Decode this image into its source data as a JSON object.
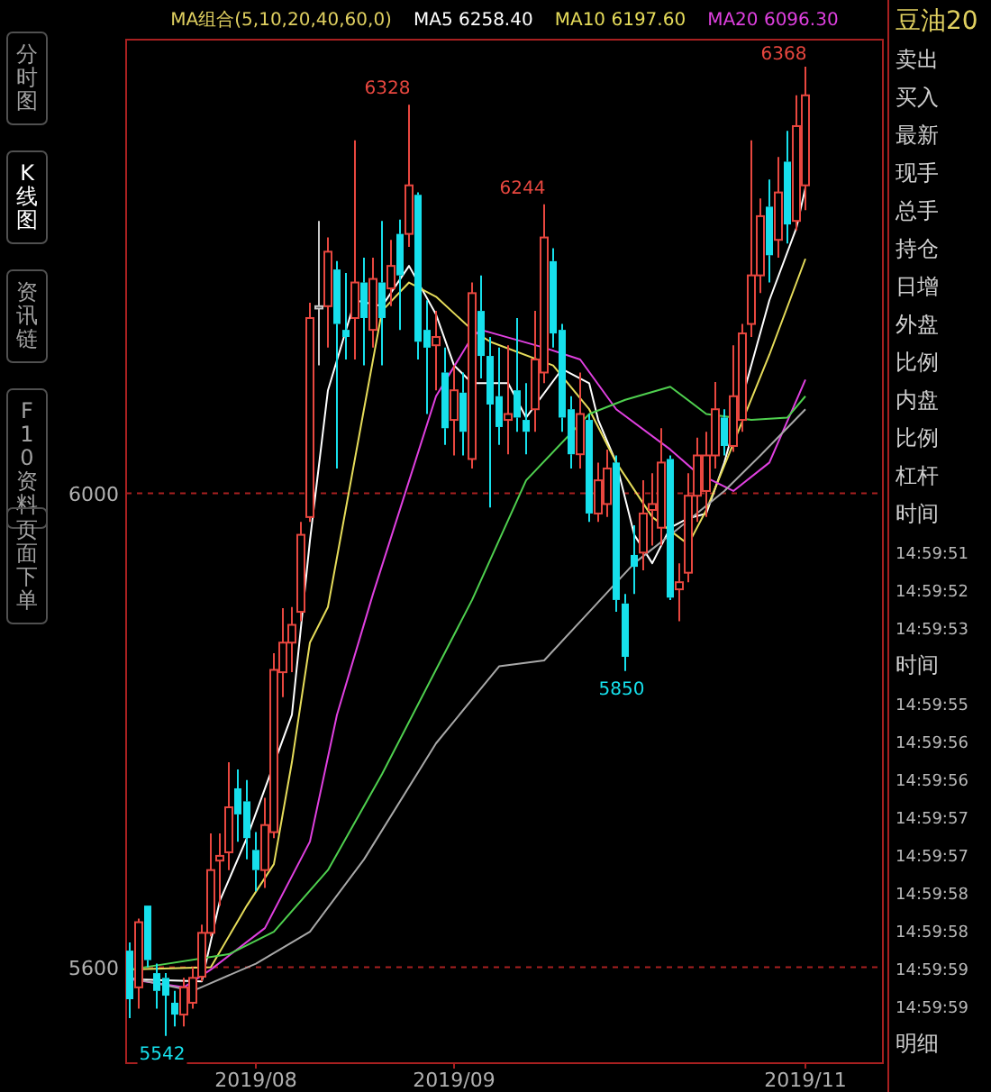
{
  "chart_data": {
    "type": "candlestick",
    "categories": [
      null,
      null,
      null,
      null,
      null,
      null,
      null,
      null,
      null,
      null,
      null,
      null,
      null,
      null,
      "2019/08",
      null,
      null,
      null,
      null,
      null,
      null,
      null,
      null,
      null,
      null,
      null,
      null,
      null,
      null,
      null,
      null,
      null,
      null,
      null,
      null,
      null,
      "2019/09",
      null,
      null,
      null,
      null,
      null,
      null,
      null,
      null,
      null,
      null,
      null,
      null,
      null,
      null,
      null,
      null,
      null,
      null,
      null,
      null,
      null,
      null,
      null,
      null,
      null,
      null,
      null,
      null,
      null,
      null,
      null,
      null,
      null,
      null,
      null,
      null,
      null,
      null,
      "2019/11"
    ],
    "ohlc": [
      [
        5614,
        5621,
        5557,
        5573
      ],
      [
        5583,
        5641,
        5565,
        5638
      ],
      [
        5652,
        5652,
        5600,
        5606
      ],
      [
        5595,
        5603,
        5565,
        5580
      ],
      [
        5591,
        5595,
        5542,
        5576
      ],
      [
        5570,
        5580,
        5550,
        5560
      ],
      [
        5560,
        5591,
        5550,
        5583
      ],
      [
        5570,
        5600,
        5565,
        5591
      ],
      [
        5592,
        5636,
        5588,
        5629
      ],
      [
        5629,
        5713,
        5626,
        5682
      ],
      [
        5690,
        5713,
        5652,
        5694
      ],
      [
        5697,
        5773,
        5682,
        5735
      ],
      [
        5751,
        5767,
        5706,
        5729
      ],
      [
        5740,
        5758,
        5691,
        5709
      ],
      [
        5699,
        5714,
        5664,
        5682
      ],
      [
        5682,
        5743,
        5667,
        5720
      ],
      [
        5714,
        5865,
        5709,
        5851
      ],
      [
        5849,
        5903,
        5828,
        5874
      ],
      [
        5874,
        5904,
        5849,
        5889
      ],
      [
        5900,
        5976,
        5892,
        5965
      ],
      [
        5980,
        6161,
        5976,
        6148
      ],
      [
        6156,
        6230,
        6108,
        6158
      ],
      [
        6158,
        6216,
        6123,
        6204
      ],
      [
        6189,
        6196,
        6021,
        6143
      ],
      [
        6138,
        6186,
        6113,
        6132
      ],
      [
        6148,
        6298,
        6113,
        6178
      ],
      [
        6178,
        6199,
        6108,
        6148
      ],
      [
        6138,
        6199,
        6123,
        6181
      ],
      [
        6178,
        6230,
        6108,
        6148
      ],
      [
        6173,
        6214,
        6158,
        6192
      ],
      [
        6219,
        6231,
        6138,
        6184
      ],
      [
        6219,
        6328,
        6208,
        6260
      ],
      [
        6252,
        6254,
        6113,
        6128
      ],
      [
        6138,
        6163,
        6067,
        6123
      ],
      [
        6125,
        6154,
        6087,
        6132
      ],
      [
        6102,
        6123,
        6041,
        6055
      ],
      [
        6062,
        6108,
        6032,
        6087
      ],
      [
        6085,
        6102,
        6032,
        6052
      ],
      [
        6029,
        6178,
        6021,
        6169
      ],
      [
        6154,
        6184,
        6097,
        6116
      ],
      [
        6116,
        6132,
        5988,
        6075
      ],
      [
        6082,
        6123,
        6041,
        6056
      ],
      [
        6062,
        6125,
        6033,
        6067
      ],
      [
        6087,
        6148,
        6052,
        6064
      ],
      [
        6062,
        6093,
        6033,
        6052
      ],
      [
        6071,
        6154,
        6052,
        6113
      ],
      [
        6102,
        6244,
        6093,
        6216
      ],
      [
        6196,
        6207,
        6123,
        6135
      ],
      [
        6138,
        6143,
        6052,
        6064
      ],
      [
        6071,
        6082,
        6021,
        6033
      ],
      [
        6033,
        6102,
        6021,
        6067
      ],
      [
        6062,
        6067,
        5976,
        5983
      ],
      [
        5983,
        6026,
        5976,
        6011
      ],
      [
        5991,
        6037,
        5980,
        6021
      ],
      [
        6026,
        6032,
        5900,
        5910
      ],
      [
        5907,
        5915,
        5850,
        5862
      ],
      [
        5948,
        5973,
        5915,
        5938
      ],
      [
        5950,
        6011,
        5935,
        5983
      ],
      [
        5986,
        6017,
        5956,
        5991
      ],
      [
        5971,
        6055,
        5956,
        6026
      ],
      [
        6029,
        6032,
        5910,
        5912
      ],
      [
        5919,
        5941,
        5892,
        5925
      ],
      [
        5933,
        6017,
        5925,
        5998
      ],
      [
        5998,
        6047,
        5976,
        6032
      ],
      [
        6002,
        6052,
        5980,
        6032
      ],
      [
        6032,
        6094,
        6021,
        6071
      ],
      [
        6064,
        6071,
        6032,
        6040
      ],
      [
        6040,
        6125,
        6035,
        6082
      ],
      [
        6062,
        6143,
        6052,
        6135
      ],
      [
        6143,
        6298,
        6132,
        6184
      ],
      [
        6184,
        6249,
        6169,
        6234
      ],
      [
        6242,
        6265,
        6178,
        6201
      ],
      [
        6214,
        6284,
        6199,
        6254
      ],
      [
        6280,
        6306,
        6211,
        6227
      ],
      [
        6230,
        6336,
        6222,
        6310
      ],
      [
        6260,
        6368,
        6239,
        6336
      ]
    ],
    "colors": [
      "#16e0ec",
      "#e8473f",
      "#16e0ec",
      "#16e0ec",
      "#16e0ec",
      "#16e0ec",
      "#e8473f",
      "#e8473f",
      "#e8473f",
      "#e8473f",
      "#e8473f",
      "#e8473f",
      "#16e0ec",
      "#16e0ec",
      "#16e0ec",
      "#e8473f",
      "#e8473f",
      "#e8473f",
      "#e8473f",
      "#e8473f",
      "#e8473f",
      "#c8c8c8",
      "#e8473f",
      "#16e0ec",
      "#16e0ec",
      "#e8473f",
      "#16e0ec",
      "#e8473f",
      "#16e0ec",
      "#e8473f",
      "#16e0ec",
      "#e8473f",
      "#16e0ec",
      "#16e0ec",
      "#e8473f",
      "#16e0ec",
      "#e8473f",
      "#16e0ec",
      "#e8473f",
      "#16e0ec",
      "#16e0ec",
      "#16e0ec",
      "#e8473f",
      "#16e0ec",
      "#16e0ec",
      "#e8473f",
      "#e8473f",
      "#16e0ec",
      "#16e0ec",
      "#16e0ec",
      "#e8473f",
      "#16e0ec",
      "#e8473f",
      "#e8473f",
      "#16e0ec",
      "#16e0ec",
      "#16e0ec",
      "#e8473f",
      "#e8473f",
      "#e8473f",
      "#16e0ec",
      "#e8473f",
      "#e8473f",
      "#e8473f",
      "#e8473f",
      "#e8473f",
      "#16e0ec",
      "#e8473f",
      "#e8473f",
      "#e8473f",
      "#e8473f",
      "#16e0ec",
      "#e8473f",
      "#16e0ec",
      "#e8473f",
      "#e8473f"
    ],
    "series": [
      {
        "type": "line",
        "name": "MA5 6258.40",
        "color": "#ffffff",
        "values": [
          5590,
          null,
          null,
          null,
          null,
          null,
          null,
          null,
          5588,
          null,
          5656,
          null,
          null,
          5709,
          null,
          null,
          null,
          null,
          5813,
          null,
          5960,
          null,
          6087,
          null,
          null,
          6163,
          null,
          null,
          6158,
          null,
          null,
          6192,
          null,
          null,
          6151,
          null,
          6108,
          null,
          6093,
          null,
          null,
          null,
          6093,
          null,
          6064,
          null,
          null,
          null,
          6105,
          null,
          null,
          6093,
          6062,
          null,
          6026,
          null,
          5965,
          null,
          5941,
          null,
          5971,
          null,
          5979,
          null,
          5983,
          null,
          6026,
          null,
          null,
          null,
          null,
          6163,
          null,
          null,
          6224,
          6258
        ]
      },
      {
        "type": "line",
        "name": "MA10 6197.60",
        "color": "#e6dc5a",
        "values": [
          5598,
          null,
          null,
          null,
          null,
          null,
          null,
          null,
          null,
          5600,
          null,
          null,
          null,
          5652,
          null,
          null,
          5687,
          null,
          5773,
          null,
          5874,
          null,
          5904,
          null,
          null,
          null,
          6071,
          null,
          6154,
          null,
          null,
          6178,
          null,
          null,
          6166,
          null,
          null,
          null,
          6138,
          null,
          6128,
          null,
          null,
          null,
          null,
          null,
          null,
          6108,
          null,
          null,
          null,
          6071,
          null,
          null,
          6026,
          null,
          null,
          null,
          5980,
          null,
          null,
          null,
          5957,
          null,
          5986,
          null,
          null,
          null,
          null,
          null,
          null,
          6117,
          null,
          null,
          null,
          6198
        ]
      },
      {
        "type": "line",
        "name": "MA20 6096.30",
        "color": "#e040e0",
        "values": [
          5590,
          null,
          null,
          null,
          null,
          null,
          5583,
          null,
          null,
          5598,
          null,
          null,
          null,
          null,
          null,
          5633,
          null,
          null,
          null,
          null,
          5706,
          null,
          null,
          5813,
          null,
          null,
          null,
          5915,
          null,
          null,
          null,
          null,
          null,
          null,
          6082,
          null,
          null,
          null,
          6132,
          6138,
          null,
          null,
          null,
          null,
          null,
          null,
          6123,
          null,
          null,
          null,
          6113,
          null,
          null,
          null,
          6071,
          null,
          null,
          null,
          null,
          null,
          6037,
          null,
          null,
          6017,
          null,
          null,
          null,
          6002,
          null,
          null,
          null,
          6026,
          null,
          null,
          null,
          6096
        ]
      },
      {
        "type": "line",
        "color": "#4fd04f",
        "values": [
          5598,
          null,
          null,
          null,
          null,
          null,
          null,
          null,
          null,
          null,
          null,
          5611,
          null,
          null,
          null,
          null,
          5630,
          null,
          null,
          null,
          null,
          null,
          5682,
          null,
          null,
          null,
          null,
          null,
          5763,
          null,
          null,
          null,
          null,
          null,
          null,
          null,
          null,
          null,
          5910,
          null,
          null,
          null,
          null,
          null,
          6011,
          null,
          null,
          null,
          null,
          null,
          null,
          6067,
          null,
          null,
          null,
          6079,
          null,
          null,
          null,
          null,
          6090,
          null,
          null,
          null,
          6067,
          null,
          null,
          null,
          null,
          6062,
          null,
          null,
          null,
          6064,
          null,
          6082
        ]
      },
      {
        "type": "line",
        "color": "#a8a8a8",
        "values": [
          5591,
          null,
          null,
          null,
          null,
          null,
          null,
          5580,
          null,
          null,
          null,
          null,
          null,
          null,
          5603,
          null,
          null,
          null,
          null,
          null,
          5630,
          null,
          null,
          null,
          null,
          null,
          5691,
          null,
          null,
          null,
          null,
          null,
          null,
          null,
          5789,
          null,
          null,
          null,
          null,
          null,
          null,
          5854,
          null,
          null,
          null,
          null,
          5859,
          null,
          null,
          null,
          null,
          5900,
          null,
          null,
          null,
          null,
          5941,
          null,
          null,
          null,
          null,
          5971,
          null,
          null,
          null,
          null,
          6002,
          null,
          null,
          null,
          6032,
          null,
          null,
          null,
          null,
          6071
        ]
      }
    ],
    "ylim": [
      5519,
      6383
    ],
    "yticks": [
      5600,
      6000
    ],
    "grid": "y",
    "legend": "top",
    "legend_title": "MA组合(5,10,20,40,60,0)",
    "annotations": [
      "分时图",
      "K线图",
      "资讯链",
      "F10资料",
      "页面下单",
      "豆油20",
      "卖出",
      "买入",
      "最新",
      "现手",
      "总手",
      "持仓",
      "日增",
      "外盘",
      "比例",
      "内盘",
      "比例",
      "杠杆",
      "时间",
      "14:59:51",
      "14:59:52",
      "14:59:53",
      "时间",
      "14:59:55",
      "14:59:56",
      "14:59:56",
      "14:59:57",
      "14:59:57",
      "14:59:58",
      "14:59:58",
      "14:59:59",
      "14:59:59",
      "明细",
      "6328",
      "6244",
      {
        "text": "6368",
        "x": "2019/11",
        "y": 6368
      },
      {
        "text": "5850",
        "y": 5850
      },
      {
        "text": "5542",
        "y": 5542
      }
    ]
  }
}
